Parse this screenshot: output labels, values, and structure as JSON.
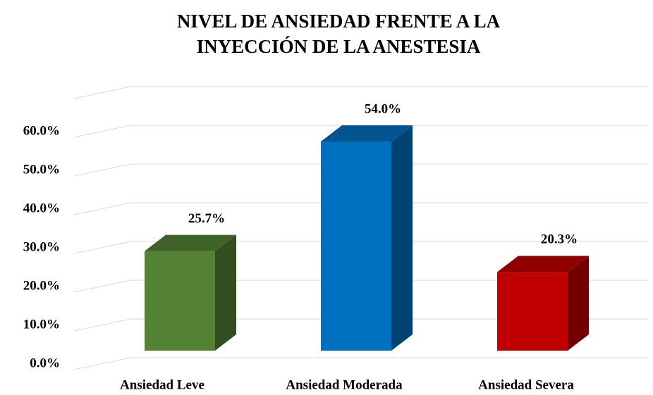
{
  "chart_data": {
    "type": "bar3d",
    "title": "NIVEL DE ANSIEDAD FRENTE A LA INYECCIÓN DE LA ANESTESIA",
    "categories": [
      "Ansiedad Leve",
      "Ansiedad Moderada",
      "Ansiedad Severa"
    ],
    "values": [
      25.7,
      54.0,
      20.3
    ],
    "value_labels": [
      "25.7%",
      "54.0%",
      "20.3%"
    ],
    "colors": [
      "#548235",
      "#0070c0",
      "#c00000"
    ],
    "ylim": [
      0,
      70
    ],
    "yticks": [
      {
        "value": 0,
        "label": "0.0%"
      },
      {
        "value": 10,
        "label": "10.0%"
      },
      {
        "value": 20,
        "label": "20.0%"
      },
      {
        "value": 30,
        "label": "30.0%"
      },
      {
        "value": 40,
        "label": "40.0%"
      },
      {
        "value": 50,
        "label": "50.0%"
      },
      {
        "value": 60,
        "label": "60.0%"
      }
    ],
    "grid": true
  }
}
